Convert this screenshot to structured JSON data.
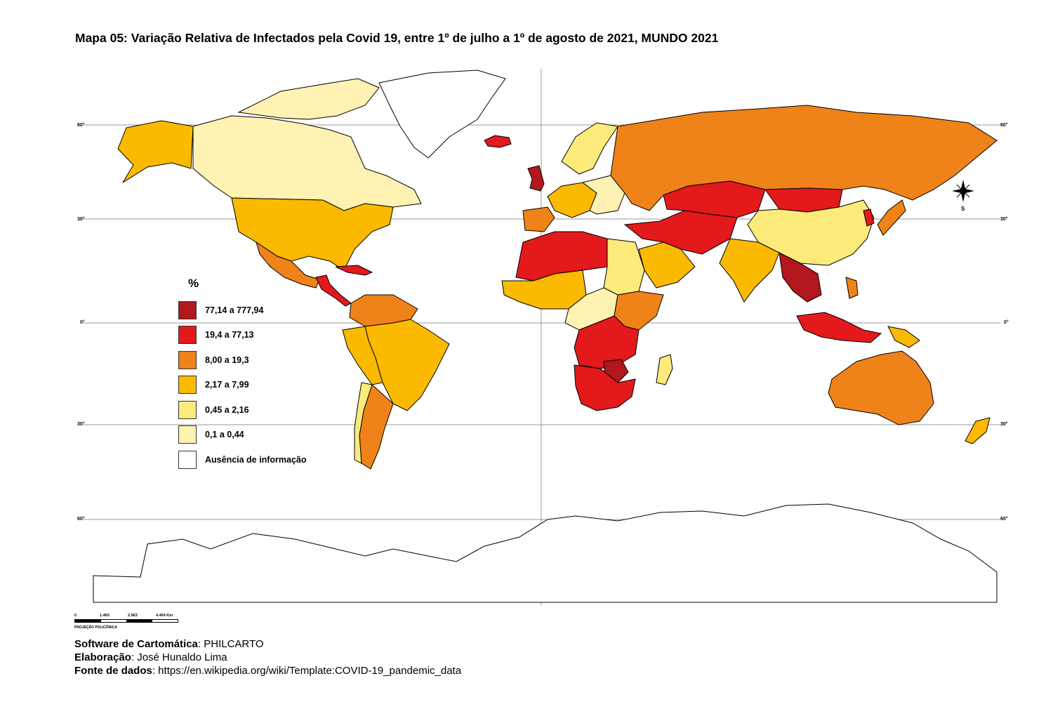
{
  "title": "Mapa 05: Variação Relativa de Infectados pela Covid 19, entre 1º de julho a 1º de agosto de 2021, MUNDO 2021",
  "graticule": {
    "labels": [
      "60°",
      "30°",
      "0°",
      "30°",
      "60°"
    ]
  },
  "legend": {
    "title": "%",
    "items": [
      {
        "label": "77,14 a 777,94",
        "color": "#b2171d"
      },
      {
        "label": "19,4 a 77,13",
        "color": "#e3191c"
      },
      {
        "label": "8,00 a 19,3",
        "color": "#ef8219"
      },
      {
        "label": "2,17 a 7,99",
        "color": "#fbb900"
      },
      {
        "label": "0,45 a 2,16",
        "color": "#fcea7b"
      },
      {
        "label": "0,1 a 0,44",
        "color": "#fff2b3"
      },
      {
        "label": "Ausência de informação",
        "color": "#ffffff"
      }
    ]
  },
  "compass": {
    "label": "S"
  },
  "scale": {
    "ticks": [
      "0",
      "1.465",
      "2.963",
      "4.404 Km"
    ],
    "projection": "PROJEÇÃO POLICÔNICA"
  },
  "credits": {
    "software_label": "Software de Cartomática",
    "software_value": ": PHILCARTO",
    "author_label": "Elaboração",
    "author_value": ": José Hunaldo Lima",
    "source_label": "Fonte de dados",
    "source_value": ": https://en.wikipedia.org/wiki/Template:COVID-19_pandemic_data"
  },
  "colors": {
    "very_high": "#b2171d",
    "high": "#e3191c",
    "mid_high": "#ef8219",
    "mid": "#fbb900",
    "low": "#fcea7b",
    "very_low": "#fff2b3",
    "no_data": "#ffffff"
  }
}
